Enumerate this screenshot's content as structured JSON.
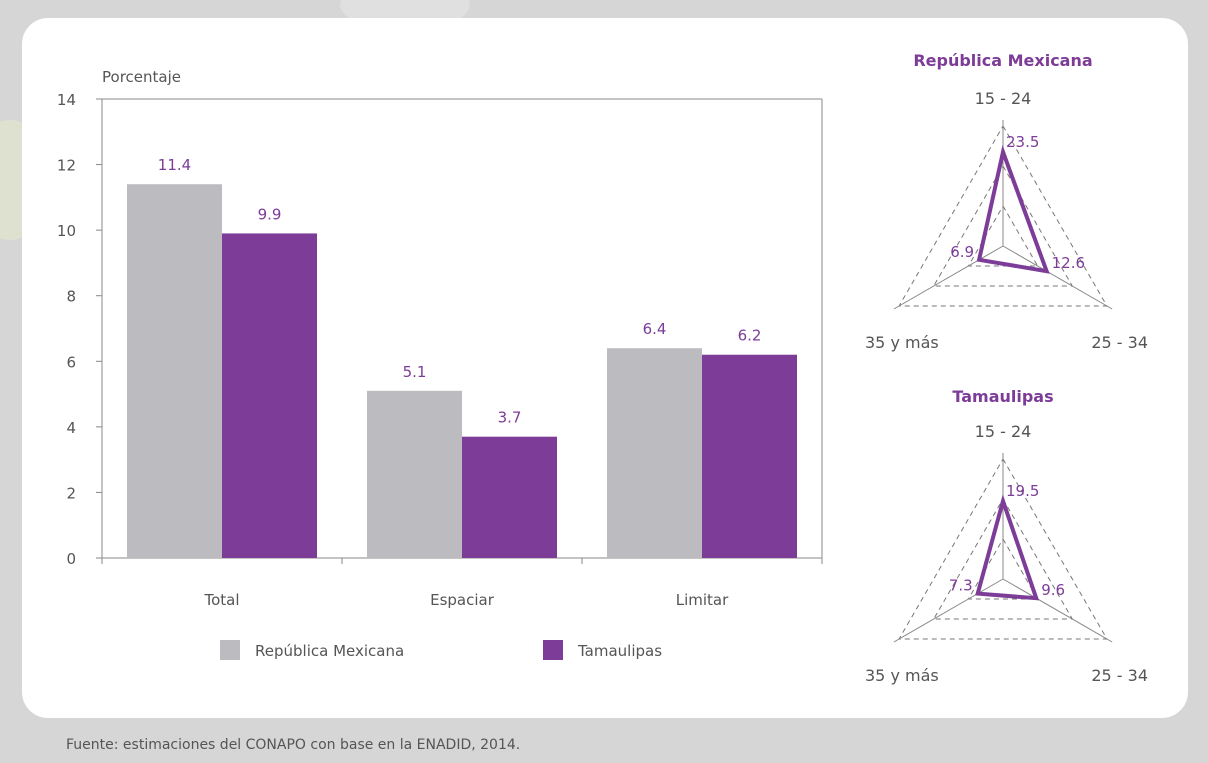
{
  "chart_data": [
    {
      "type": "bar",
      "ylabel": "Porcentaje",
      "ylim": [
        0,
        14
      ],
      "yticks": [
        "0",
        "2",
        "4",
        "6",
        "8",
        "10",
        "12",
        "14"
      ],
      "categories": [
        "Total",
        "Espaciar",
        "Limitar"
      ],
      "series": [
        {
          "name": "República Mexicana",
          "values": [
            11.4,
            5.1,
            6.4
          ],
          "labels": [
            "11.4",
            "5.1",
            "6.4"
          ],
          "color": "#bcbcc0"
        },
        {
          "name": "Tamaulipas",
          "values": [
            9.9,
            3.7,
            6.2
          ],
          "labels": [
            "9.9",
            "3.7",
            "6.2"
          ],
          "color": "#7d3c98"
        }
      ],
      "grid": false,
      "legend": "bottom"
    },
    {
      "type": "radar",
      "title": "República Mexicana",
      "axes": [
        "15 - 24",
        "25 - 34",
        "35 y más"
      ],
      "values": [
        23.5,
        12.6,
        6.9
      ],
      "labels": [
        "23.5",
        "12.6",
        "6.9"
      ]
    },
    {
      "type": "radar",
      "title": "Tamaulipas",
      "axes": [
        "15 - 24",
        "25 - 34",
        "35 y más"
      ],
      "values": [
        19.5,
        9.6,
        7.3
      ],
      "labels": [
        "19.5",
        "9.6",
        "7.3"
      ]
    }
  ],
  "footer": "Fuente: estimaciones del CONAPO con base en la ENADID, 2014.",
  "colors": {
    "accent": "#7d3c98",
    "gray_bar": "#bcbcc0",
    "text": "#555555"
  }
}
